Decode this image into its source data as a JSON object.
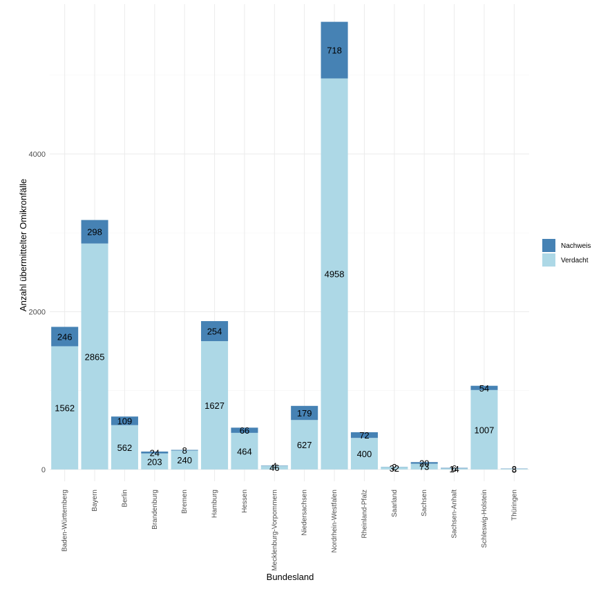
{
  "chart_data": {
    "type": "bar",
    "stacked": true,
    "xlabel": "Bundesland",
    "ylabel": "Anzahl übermittelter Omikronfälle",
    "ylim": [
      -150,
      5900
    ],
    "yticks": [
      0,
      2000,
      4000
    ],
    "categories": [
      "Baden-Württemberg",
      "Bayern",
      "Berlin",
      "Brandenburg",
      "Bremen",
      "Hamburg",
      "Hessen",
      "Mecklenburg-Vorpommern",
      "Niedersachsen",
      "Nordrhein-Westfalen",
      "Rheinland-Pfalz",
      "Saarland",
      "Sachsen",
      "Sachsen-Anhalt",
      "Schleswig-Holstein",
      "Thüringen"
    ],
    "series": [
      {
        "name": "Verdacht",
        "color": "#add8e6",
        "values": [
          1562,
          2865,
          562,
          203,
          240,
          1627,
          464,
          46,
          627,
          4958,
          400,
          32,
          73,
          14,
          1007,
          8
        ]
      },
      {
        "name": "Nachweis",
        "color": "#4682b4",
        "values": [
          246,
          298,
          109,
          24,
          8,
          254,
          66,
          4,
          179,
          718,
          72,
          2,
          20,
          6,
          54,
          3
        ]
      }
    ],
    "legend": {
      "position": "right",
      "entries": [
        "Nachweis",
        "Verdacht"
      ]
    }
  }
}
